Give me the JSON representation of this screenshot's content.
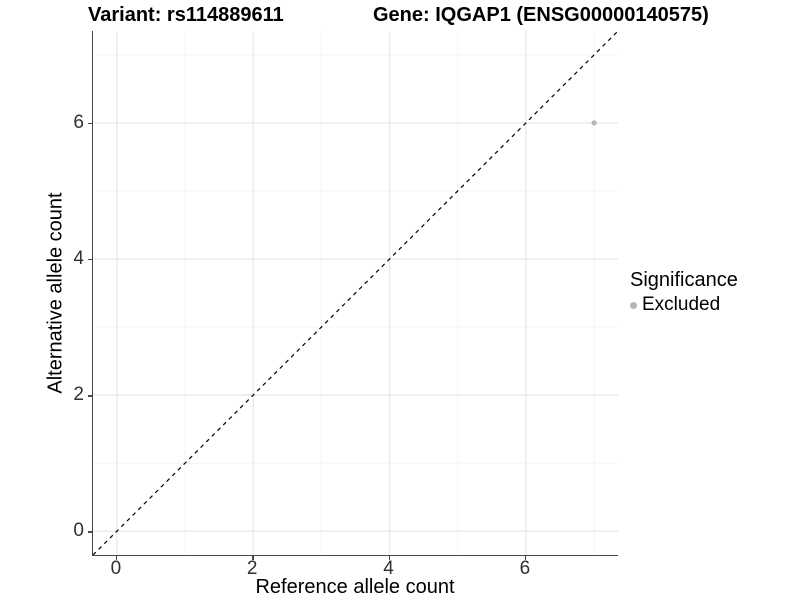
{
  "titles": {
    "variant": "Variant: rs114889611",
    "gene": "Gene: IQGAP1 (ENSG00000140575)"
  },
  "axes": {
    "x": {
      "label": "Reference allele count",
      "tick_labels": [
        "0",
        "2",
        "4",
        "6"
      ]
    },
    "y": {
      "label": "Alternative allele count",
      "tick_labels": [
        "0",
        "2",
        "4",
        "6"
      ]
    }
  },
  "legend": {
    "title": "Significance",
    "items": [
      {
        "label": "Excluded",
        "color": "#b5b5b5"
      }
    ]
  },
  "colors": {
    "background": "#ffffff",
    "grid_major": "#e8e8e8",
    "grid_minor": "#f4f4f4",
    "axis_line": "#464646",
    "dashed_line": "#000000",
    "point": "#b5b5b5",
    "tick_text": "#303030"
  },
  "chart_data": {
    "type": "scatter",
    "title": "Variant: rs114889611 — Gene: IQGAP1 (ENSG00000140575)",
    "xlabel": "Reference allele count",
    "ylabel": "Alternative allele count",
    "xlim": [
      -0.35,
      7.35
    ],
    "ylim": [
      -0.35,
      7.35
    ],
    "x_ticks": [
      0,
      2,
      4,
      6
    ],
    "y_ticks": [
      0,
      2,
      4,
      6
    ],
    "grid": {
      "major_x": [
        0,
        2,
        4,
        6
      ],
      "minor_x": [
        1,
        3,
        5,
        7
      ],
      "major_y": [
        0,
        2,
        4,
        6
      ],
      "minor_y": [
        1,
        3,
        5,
        7
      ]
    },
    "series": [
      {
        "name": "Excluded",
        "color": "#b5b5b5",
        "points": [
          {
            "x": 7,
            "y": 6
          }
        ]
      }
    ],
    "reference_line": {
      "type": "identity",
      "style": "dashed",
      "from": [
        -0.35,
        -0.35
      ],
      "to": [
        7.35,
        7.35
      ]
    },
    "legend_position": "right",
    "grid_on": true
  }
}
